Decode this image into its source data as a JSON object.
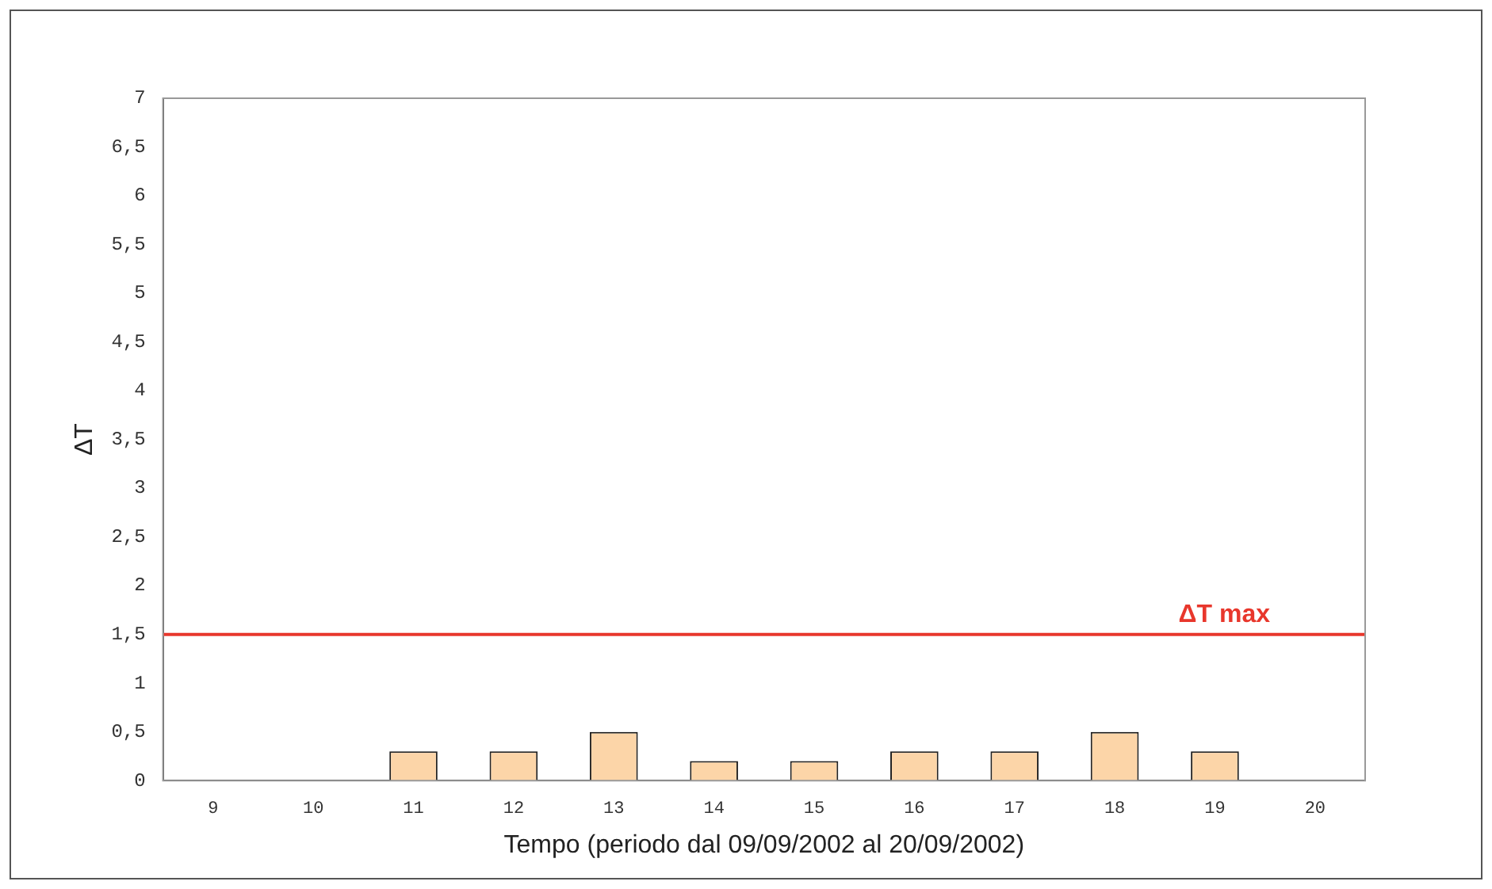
{
  "chart_data": {
    "type": "bar",
    "xlabel": "Tempo (periodo dal 09/09/2002 al 20/09/2002)",
    "ylabel": "ΔT",
    "categories": [
      "9",
      "10",
      "11",
      "12",
      "13",
      "14",
      "15",
      "16",
      "17",
      "18",
      "19",
      "20"
    ],
    "values": [
      0,
      0,
      0.3,
      0.3,
      0.5,
      0.2,
      0.2,
      0.3,
      0.3,
      0.5,
      0.3,
      0
    ],
    "color": "#fcd5a8",
    "ylim": [
      0,
      7
    ],
    "yticks": [
      0,
      {
        "value": 0.5,
        "label": "0,5"
      },
      1,
      {
        "value": 1.5,
        "label": "1,5"
      },
      2,
      {
        "value": 2.5,
        "label": "2,5"
      },
      3,
      {
        "value": 3.5,
        "label": "3,5"
      },
      4,
      {
        "value": 4.5,
        "label": "4,5"
      },
      5,
      {
        "value": 5.5,
        "label": "5,5"
      },
      6,
      {
        "value": 6.5,
        "label": "6,5"
      },
      7
    ],
    "ref_lines": [
      {
        "axis": "y",
        "value": 1.5,
        "label": "ΔT max",
        "color": "#e8372c"
      }
    ],
    "grid": false,
    "legend": false
  }
}
